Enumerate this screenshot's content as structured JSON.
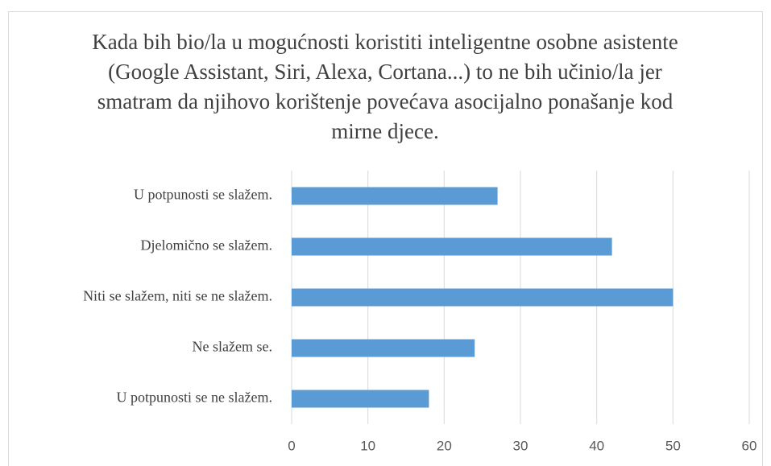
{
  "chart_data": {
    "type": "bar",
    "orientation": "horizontal",
    "title": "Kada bih bio/la u mogućnosti koristiti inteligentne osobne asistente (Google Assistant, Siri, Alexa, Cortana...) to ne bih učinio/la jer smatram da njihovo korištenje povećava asocijalno ponašanje kod mirne djece.",
    "categories": [
      "U potpunosti se slažem.",
      "Djelomično se slažem.",
      "Niti se slažem, niti se ne slažem.",
      "Ne slažem se.",
      "U potpunosti se ne slažem."
    ],
    "values": [
      27,
      42,
      50,
      24,
      18
    ],
    "color": "#5b9bd5",
    "xlim": [
      0,
      60
    ],
    "xticks": [
      0,
      10,
      20,
      30,
      40,
      50,
      60
    ],
    "grid": true
  }
}
